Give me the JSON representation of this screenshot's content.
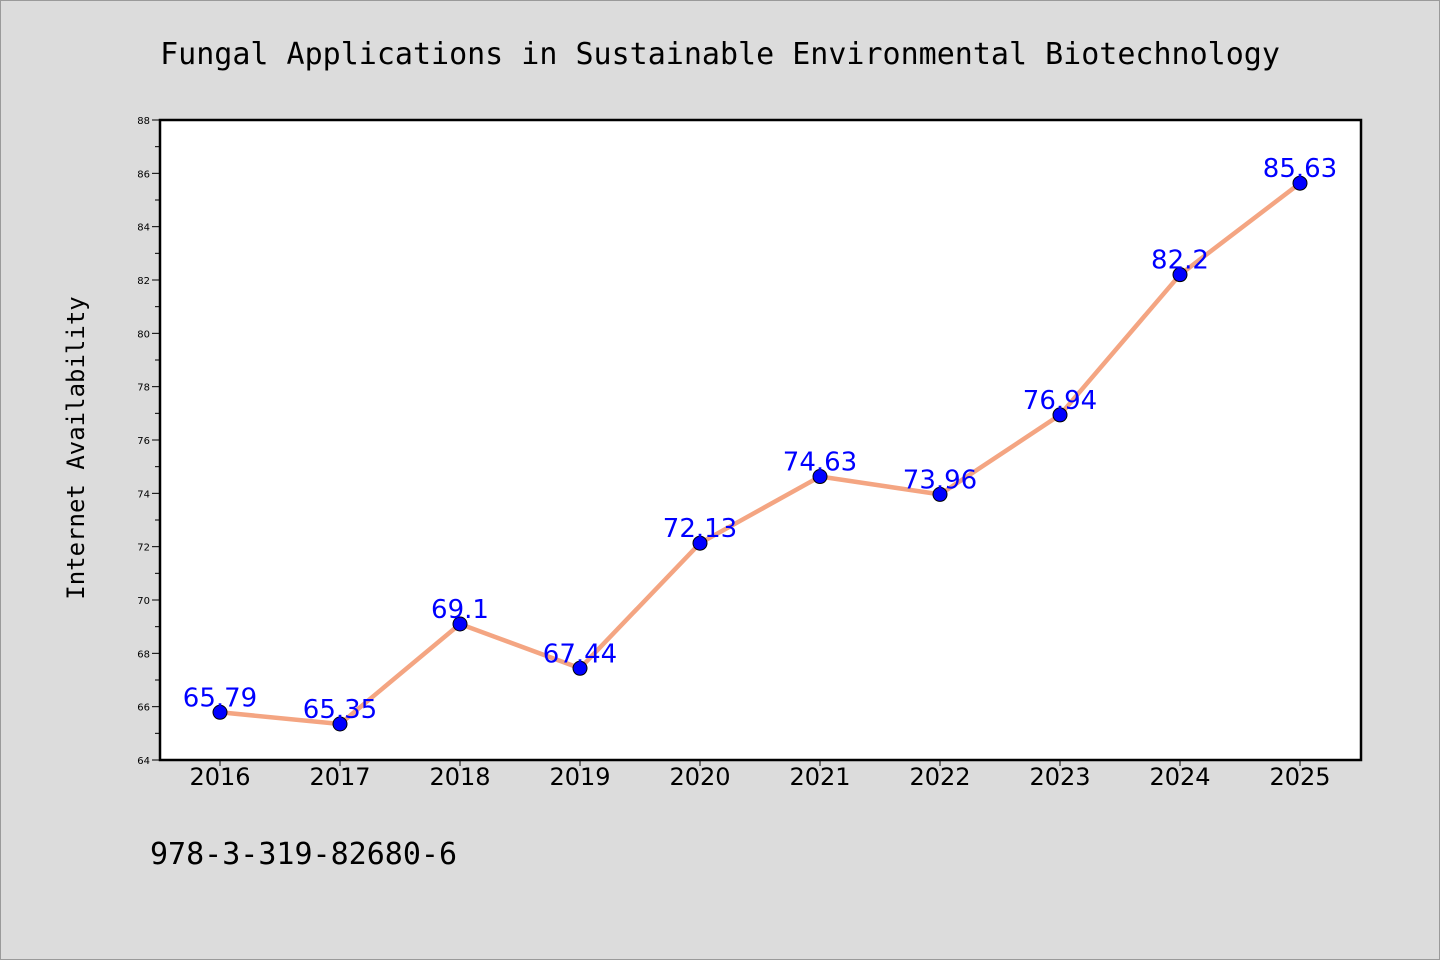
{
  "chart_data": {
    "type": "line",
    "title": "Fungal Applications in Sustainable Environmental Biotechnology",
    "xlabel": "",
    "ylabel": "Internet Availability",
    "categories": [
      "2016",
      "2017",
      "2018",
      "2019",
      "2020",
      "2021",
      "2022",
      "2023",
      "2024",
      "2025"
    ],
    "values": [
      65.79,
      65.35,
      69.1,
      67.44,
      72.13,
      74.63,
      73.96,
      76.94,
      82.2,
      85.63
    ],
    "data_labels": [
      "65.79",
      "65.35",
      "69.1",
      "67.44",
      "72.13",
      "74.63",
      "73.96",
      "76.94",
      "82.2",
      "85.63"
    ],
    "ylim": [
      64,
      88
    ],
    "yticks": [
      "64",
      "66",
      "68",
      "70",
      "72",
      "74",
      "76",
      "78",
      "80",
      "82",
      "84",
      "86",
      "88"
    ],
    "grid": false,
    "legend": "none",
    "line_color": "#f4a582",
    "marker_color": "#0000ff",
    "label_color": "#0000ff"
  },
  "caption": "978-3-319-82680-6"
}
